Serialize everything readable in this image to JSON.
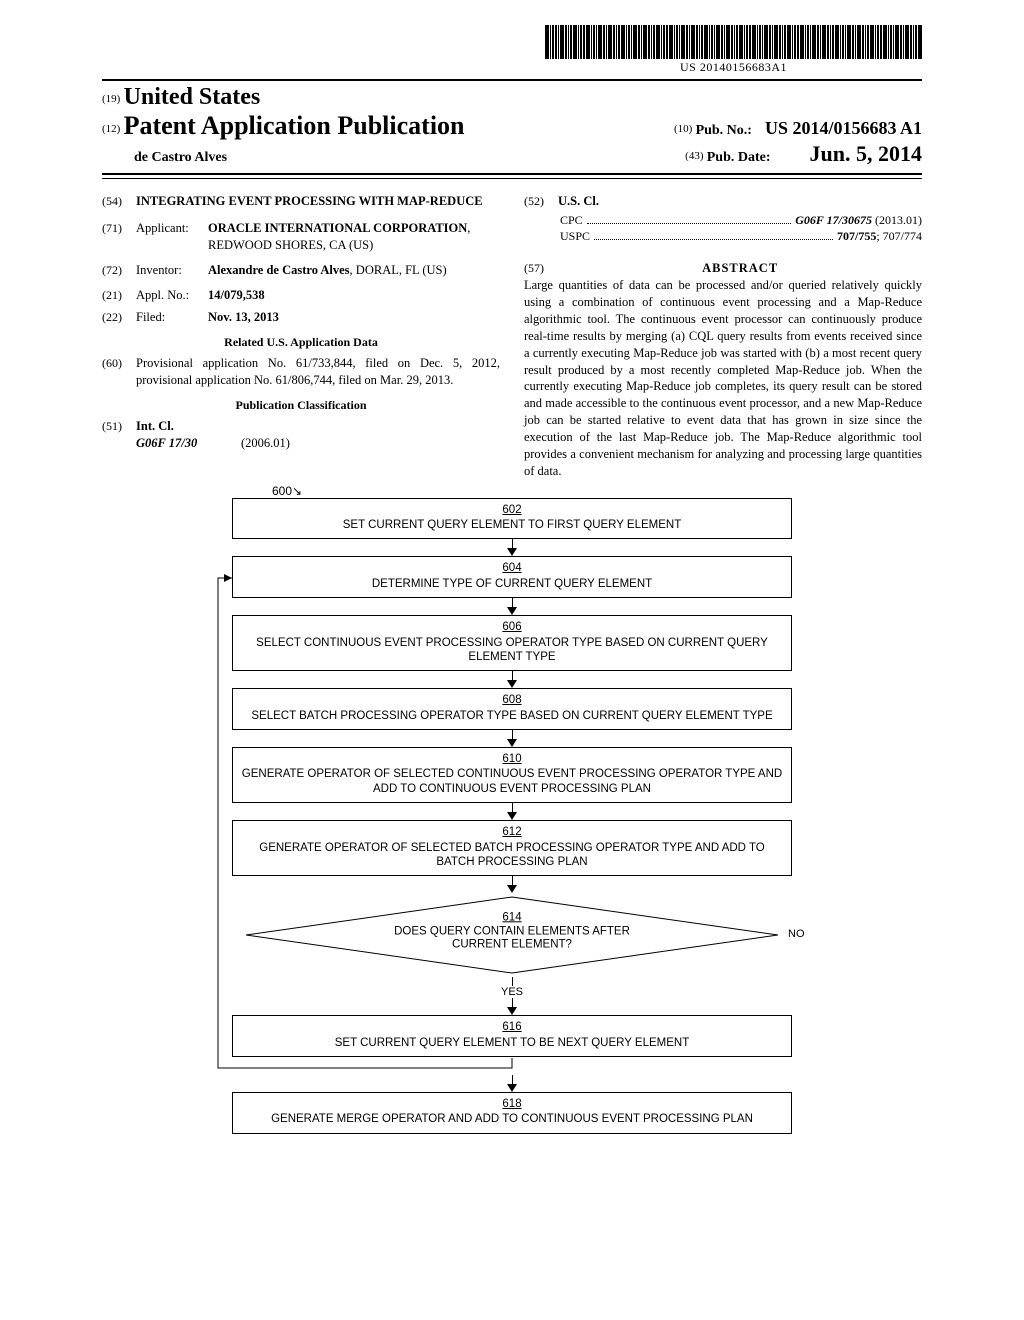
{
  "barcode_text": "US 20140156683A1",
  "header": {
    "code19": "(19)",
    "country": "United States",
    "code12": "(12)",
    "pubtype": "Patent Application Publication",
    "inventor_short": "de Castro Alves",
    "code10": "(10)",
    "pubno_label": "Pub. No.:",
    "pubno": "US 2014/0156683 A1",
    "code43": "(43)",
    "pubdate_label": "Pub. Date:",
    "pubdate": "Jun. 5, 2014"
  },
  "leftcol": {
    "f54": {
      "code": "(54)",
      "title": "INTEGRATING EVENT PROCESSING WITH MAP-REDUCE"
    },
    "f71": {
      "code": "(71)",
      "label": "Applicant:",
      "val1": "ORACLE INTERNATIONAL CORPORATION",
      "val2": ", REDWOOD SHORES, CA (US)"
    },
    "f72": {
      "code": "(72)",
      "label": "Inventor:",
      "val1": "Alexandre de Castro Alves",
      "val2": ", DORAL, FL (US)"
    },
    "f21": {
      "code": "(21)",
      "label": "Appl. No.:",
      "val": "14/079,538"
    },
    "f22": {
      "code": "(22)",
      "label": "Filed:",
      "val": "Nov. 13, 2013"
    },
    "related_title": "Related U.S. Application Data",
    "f60": {
      "code": "(60)",
      "text": "Provisional application No. 61/733,844, filed on Dec. 5, 2012, provisional application No. 61/806,744, filed on Mar. 29, 2013."
    },
    "pubclass_title": "Publication Classification",
    "f51": {
      "code": "(51)",
      "label": "Int. Cl.",
      "class": "G06F 17/30",
      "year": "(2006.01)"
    }
  },
  "rightcol": {
    "f52": {
      "code": "(52)",
      "label": "U.S. Cl."
    },
    "cpc_label": "CPC",
    "cpc_val": "G06F 17/30675",
    "cpc_year": "(2013.01)",
    "uspc_label": "USPC",
    "uspc_val": "707/755",
    "uspc_extra": "; 707/774",
    "f57": {
      "code": "(57)",
      "label": "ABSTRACT"
    },
    "abstract": "Large quantities of data can be processed and/or queried relatively quickly using a combination of continuous event processing and a Map-Reduce algorithmic tool. The continuous event processor can continuously produce real-time results by merging (a) CQL query results from events received since a currently executing Map-Reduce job was started with (b) a most recent query result produced by a most recently completed Map-Reduce job. When the currently executing Map-Reduce job completes, its query result can be stored and made accessible to the continuous event processor, and a new Map-Reduce job can be started relative to event data that has grown in size since the execution of the last Map-Reduce job. The Map-Reduce algorithmic tool provides a convenient mechanism for analyzing and processing large quantities of data."
  },
  "flow": {
    "ref": "600",
    "boxes": [
      {
        "num": "602",
        "text": "SET CURRENT QUERY ELEMENT TO FIRST QUERY ELEMENT"
      },
      {
        "num": "604",
        "text": "DETERMINE TYPE OF CURRENT QUERY ELEMENT"
      },
      {
        "num": "606",
        "text": "SELECT CONTINUOUS EVENT PROCESSING OPERATOR TYPE BASED ON CURRENT QUERY ELEMENT TYPE"
      },
      {
        "num": "608",
        "text": "SELECT BATCH PROCESSING OPERATOR TYPE BASED ON CURRENT QUERY ELEMENT TYPE"
      },
      {
        "num": "610",
        "text": "GENERATE OPERATOR OF SELECTED CONTINUOUS EVENT PROCESSING OPERATOR TYPE AND ADD TO CONTINUOUS EVENT PROCESSING PLAN"
      },
      {
        "num": "612",
        "text": "GENERATE OPERATOR OF SELECTED BATCH PROCESSING OPERATOR TYPE AND ADD TO BATCH PROCESSING PLAN"
      }
    ],
    "decision": {
      "num": "614",
      "text": "DOES QUERY CONTAIN ELEMENTS AFTER CURRENT ELEMENT?"
    },
    "yes_label": "YES",
    "no_label": "NO",
    "box616": {
      "num": "616",
      "text": "SET CURRENT QUERY ELEMENT TO BE NEXT QUERY ELEMENT"
    },
    "box618": {
      "num": "618",
      "text": "GENERATE MERGE OPERATOR AND ADD TO CONTINUOUS EVENT PROCESSING PLAN"
    }
  }
}
